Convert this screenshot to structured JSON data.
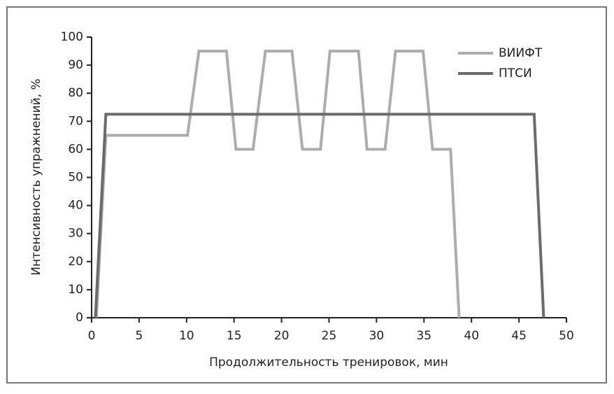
{
  "chart_data": {
    "type": "line",
    "xlabel": "Продолжительность тренировок, мин",
    "ylabel": "Интенсивность упражнений, %",
    "xlim": [
      0,
      50
    ],
    "xticks": [
      0,
      5,
      10,
      15,
      20,
      25,
      30,
      35,
      40,
      45,
      50
    ],
    "ylim": [
      0,
      100
    ],
    "yticks": [
      0,
      10,
      20,
      30,
      40,
      50,
      60,
      70,
      80,
      90,
      100
    ],
    "legend": "upper right",
    "series": [
      {
        "name": "ВИИФТ",
        "color": "#adadad",
        "x": [
          0.5,
          1.5,
          10.1,
          11.3,
          14.2,
          15.2,
          17,
          18.3,
          21.1,
          22.2,
          24.1,
          25.1,
          28.1,
          29,
          30.9,
          32,
          34.9,
          35.9,
          37.8,
          38.7
        ],
        "values": [
          0,
          65,
          65,
          95,
          95,
          60,
          60,
          95,
          95,
          60,
          60,
          95,
          95,
          60,
          60,
          95,
          95,
          60,
          60,
          0
        ]
      },
      {
        "name": "ПТСИ",
        "color": "#6b6b6b",
        "x": [
          0.4,
          1.5,
          46.6,
          47.6
        ],
        "values": [
          0,
          72.5,
          72.5,
          0
        ]
      }
    ]
  }
}
